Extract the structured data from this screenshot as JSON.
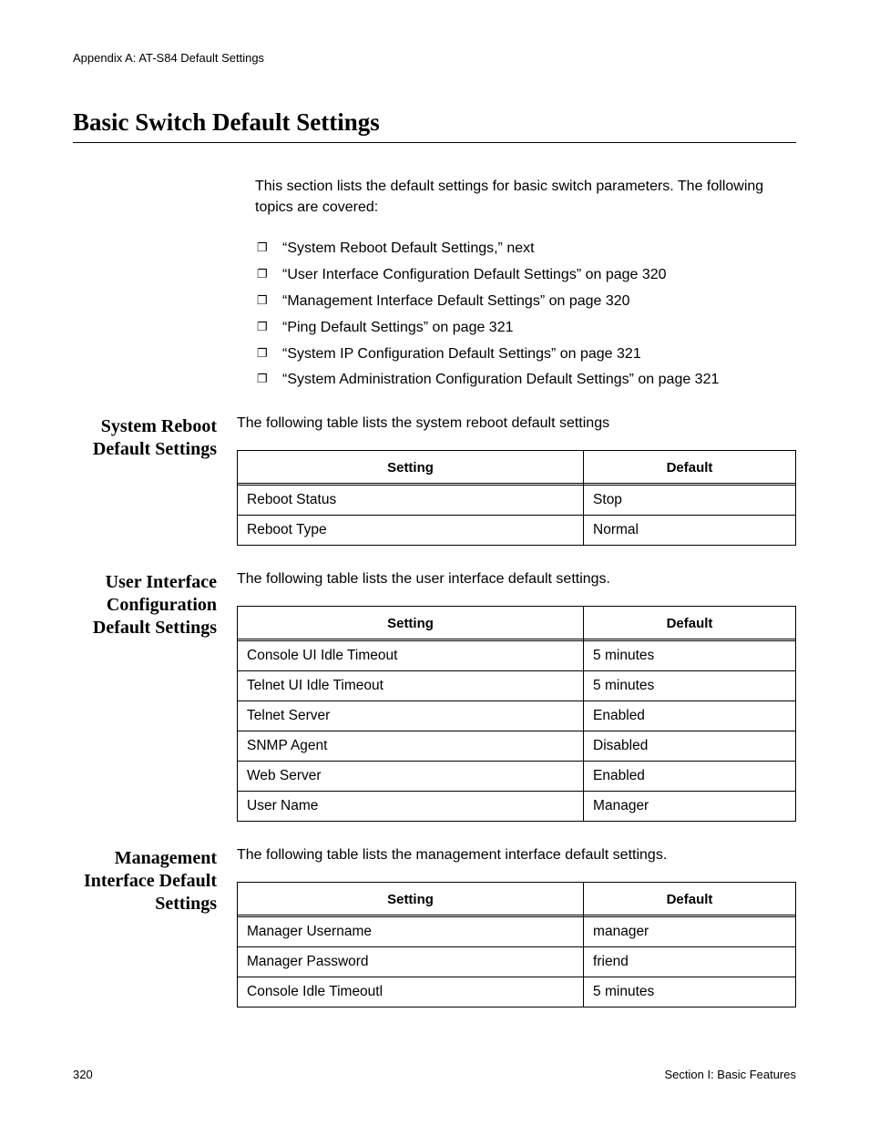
{
  "header": "Appendix A: AT-S84 Default Settings",
  "title": "Basic Switch Default Settings",
  "intro": "This section lists the default settings for basic switch parameters. The following topics are covered:",
  "topics": [
    "“System Reboot Default Settings,”  next",
    "“User Interface Configuration Default Settings” on page 320",
    "“Management Interface Default Settings” on page 320",
    "“Ping Default Settings” on page 321",
    "“System IP Configuration Default Settings” on page 321",
    "“System Administration Configuration Default Settings” on page 321"
  ],
  "table_headers": {
    "setting": "Setting",
    "default": "Default"
  },
  "sections": [
    {
      "label": "System Reboot Default Settings",
      "intro": "The following table lists the system reboot default settings",
      "rows": [
        {
          "setting": "Reboot Status",
          "default": "Stop"
        },
        {
          "setting": "Reboot Type",
          "default": "Normal"
        }
      ]
    },
    {
      "label": "User Interface Configuration Default Settings",
      "intro": "The following table lists the user interface default settings.",
      "rows": [
        {
          "setting": "Console UI Idle Timeout",
          "default": "5 minutes"
        },
        {
          "setting": "Telnet UI Idle Timeout",
          "default": "5 minutes"
        },
        {
          "setting": "Telnet Server",
          "default": "Enabled"
        },
        {
          "setting": "SNMP Agent",
          "default": "Disabled"
        },
        {
          "setting": "Web Server",
          "default": "Enabled"
        },
        {
          "setting": "User Name",
          "default": "Manager"
        }
      ]
    },
    {
      "label": "Management Interface Default Settings",
      "intro": "The following table lists the management interface default settings.",
      "rows": [
        {
          "setting": "Manager Username",
          "default": "manager"
        },
        {
          "setting": "Manager Password",
          "default": "friend"
        },
        {
          "setting": "Console Idle Timeoutl",
          "default": "5 minutes"
        }
      ]
    }
  ],
  "footer": {
    "page": "320",
    "section": "Section I: Basic Features"
  }
}
